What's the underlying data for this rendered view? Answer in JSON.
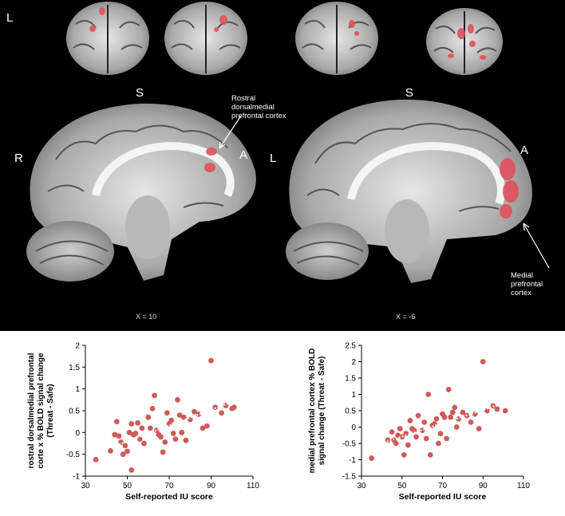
{
  "brain": {
    "orientation_coronal": "L",
    "superior_left": "S",
    "superior_right": "S",
    "right_label": "R",
    "left_label": "L",
    "anterior_left": "A",
    "anterior_right": "A",
    "annotation_left": "Rostral dorsalmedial prefrontal cortex",
    "annotation_right": "Medial prefrontal cortex",
    "coord_left": "X = 10",
    "coord_right": "X = -6",
    "blob_color": "#e0505a"
  },
  "chart_data": [
    {
      "type": "scatter",
      "ylabel": "rostral dorsalmedial prefrontal cortex % BOLD signal change (Threat - Safe)",
      "xlabel": "Self-reported IU score",
      "xlim": [
        30,
        110
      ],
      "ylim": [
        -1,
        2
      ],
      "xticks": [
        30,
        50,
        70,
        90,
        110
      ],
      "yticks": [
        -1,
        -0.5,
        0,
        0.5,
        1,
        1.5,
        2
      ],
      "marker_color": "#d05a5a",
      "trendline": {
        "style": "dotted",
        "color": "#ffffff",
        "x": [
          36,
          101
        ],
        "y": [
          -0.45,
          0.72
        ]
      },
      "points": [
        [
          35,
          -0.62
        ],
        [
          42,
          -0.42
        ],
        [
          44,
          -0.05
        ],
        [
          45,
          0.25
        ],
        [
          46,
          -0.08
        ],
        [
          47,
          -0.22
        ],
        [
          48,
          -0.5
        ],
        [
          49,
          -0.3
        ],
        [
          50,
          -0.43
        ],
        [
          51,
          0.0
        ],
        [
          52,
          -0.86
        ],
        [
          52,
          0.2
        ],
        [
          53,
          -0.05
        ],
        [
          54,
          -0.02
        ],
        [
          55,
          0.22
        ],
        [
          56,
          -0.15
        ],
        [
          57,
          0.1
        ],
        [
          58,
          -0.25
        ],
        [
          60,
          0.35
        ],
        [
          61,
          0.1
        ],
        [
          62,
          0.55
        ],
        [
          63,
          0.85
        ],
        [
          64,
          0.05
        ],
        [
          65,
          -0.05
        ],
        [
          66,
          -0.1
        ],
        [
          67,
          -0.45
        ],
        [
          68,
          -0.22
        ],
        [
          69,
          0.45
        ],
        [
          70,
          0.2
        ],
        [
          71,
          0.28
        ],
        [
          72,
          -0.02
        ],
        [
          73,
          -0.15
        ],
        [
          74,
          0.75
        ],
        [
          75,
          0.4
        ],
        [
          76,
          0.0
        ],
        [
          77,
          0.35
        ],
        [
          78,
          -0.18
        ],
        [
          80,
          0.3
        ],
        [
          82,
          0.48
        ],
        [
          84,
          0.42
        ],
        [
          86,
          0.1
        ],
        [
          88,
          0.15
        ],
        [
          90,
          1.65
        ],
        [
          92,
          0.58
        ],
        [
          95,
          0.45
        ],
        [
          97,
          0.62
        ],
        [
          100,
          0.55
        ],
        [
          101,
          0.58
        ]
      ]
    },
    {
      "type": "scatter",
      "ylabel": "medial prefrontal cortex % BOLD signal change (Threat - Safe)",
      "xlabel": "Self-reported IU score",
      "xlim": [
        30,
        110
      ],
      "ylim": [
        -1.5,
        2.5
      ],
      "xticks": [
        30,
        50,
        70,
        90,
        110
      ],
      "yticks": [
        -1.5,
        -1,
        -0.5,
        0,
        0.5,
        1,
        1.5,
        2,
        2.5
      ],
      "marker_color": "#d05a5a",
      "trendline": {
        "style": "dotted",
        "color": "#ffffff",
        "x": [
          35,
          101
        ],
        "y": [
          -0.6,
          0.75
        ]
      },
      "points": [
        [
          35,
          -0.95
        ],
        [
          43,
          -0.4
        ],
        [
          45,
          -0.15
        ],
        [
          46,
          -0.4
        ],
        [
          47,
          -0.5
        ],
        [
          48,
          -0.25
        ],
        [
          49,
          -0.05
        ],
        [
          50,
          -0.3
        ],
        [
          51,
          -0.85
        ],
        [
          52,
          -0.2
        ],
        [
          53,
          -0.55
        ],
        [
          54,
          0.2
        ],
        [
          55,
          -0.05
        ],
        [
          56,
          -0.1
        ],
        [
          57,
          -0.3
        ],
        [
          58,
          0.35
        ],
        [
          60,
          -0.1
        ],
        [
          61,
          0.15
        ],
        [
          62,
          -0.35
        ],
        [
          63,
          1.0
        ],
        [
          64,
          -0.85
        ],
        [
          65,
          0.05
        ],
        [
          66,
          0.1
        ],
        [
          67,
          0.25
        ],
        [
          68,
          -0.5
        ],
        [
          69,
          -0.2
        ],
        [
          70,
          0.4
        ],
        [
          71,
          0.3
        ],
        [
          72,
          -0.35
        ],
        [
          73,
          1.15
        ],
        [
          74,
          0.3
        ],
        [
          75,
          0.45
        ],
        [
          76,
          0.6
        ],
        [
          77,
          0.0
        ],
        [
          78,
          0.25
        ],
        [
          80,
          0.45
        ],
        [
          82,
          0.35
        ],
        [
          84,
          0.15
        ],
        [
          86,
          0.4
        ],
        [
          88,
          -0.05
        ],
        [
          90,
          2.0
        ],
        [
          92,
          0.5
        ],
        [
          95,
          0.65
        ],
        [
          97,
          0.55
        ],
        [
          101,
          0.5
        ]
      ]
    }
  ]
}
